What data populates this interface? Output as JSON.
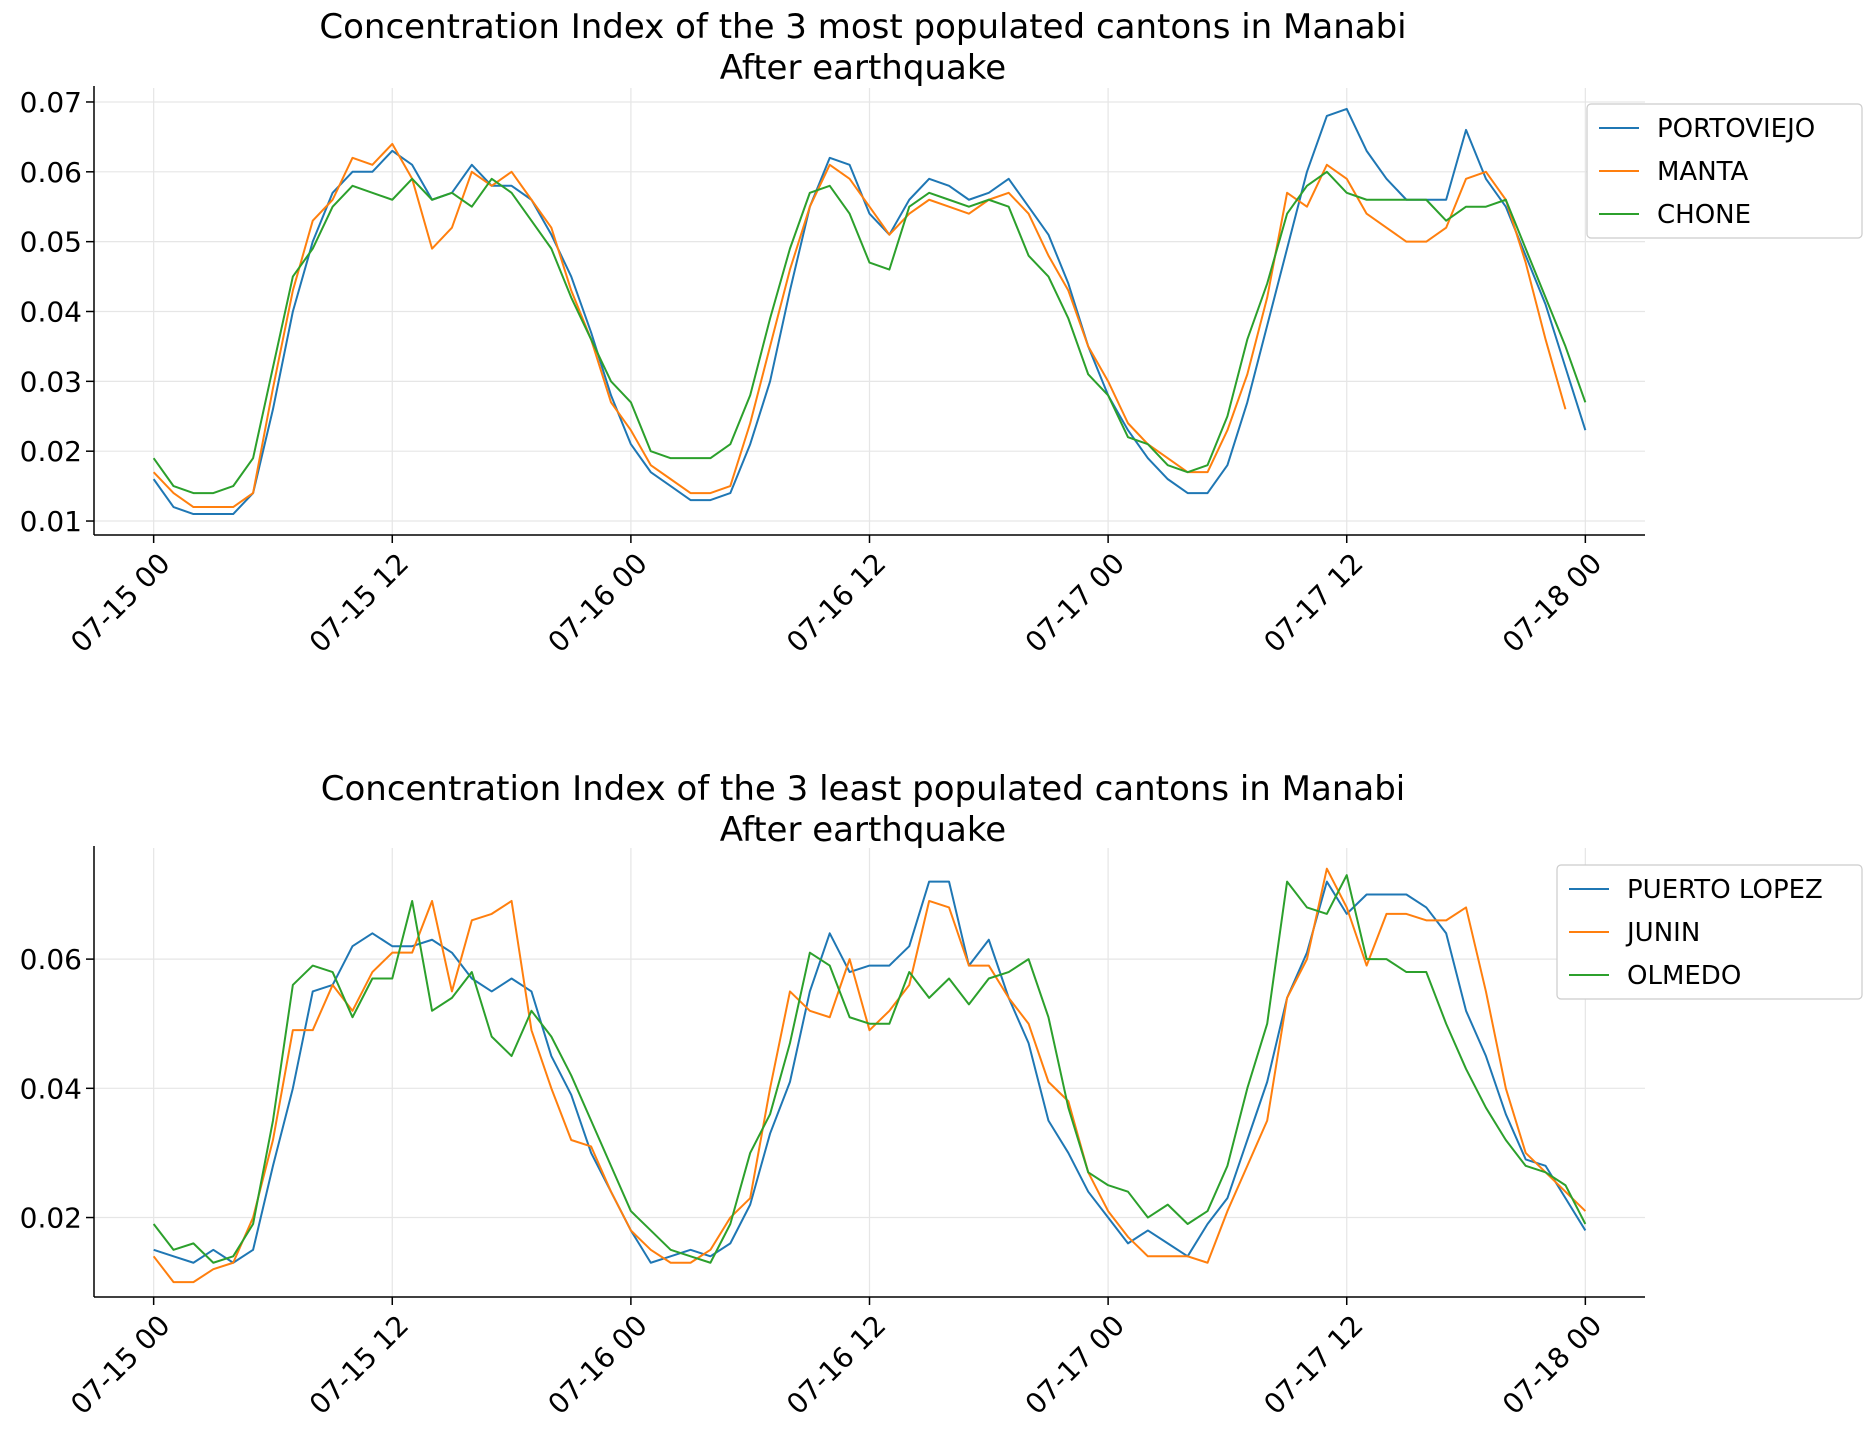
{
  "chart_data": [
    {
      "type": "line",
      "title": "Concentration Index of the 3 most populated cantons in Manabi",
      "subtitle": "After earthquake",
      "xlabel": "",
      "ylabel": "",
      "x_start": "07-15 00:00",
      "x_step_hours": 1,
      "xlim": [
        "07-14 21:00",
        "07-18 03:00"
      ],
      "xticks": [
        "07-15 00",
        "07-15 12",
        "07-16 00",
        "07-16 12",
        "07-17 00",
        "07-17 12",
        "07-18 00"
      ],
      "ylim": [
        0.008,
        0.072
      ],
      "yticks": [
        "0.01",
        "0.02",
        "0.03",
        "0.04",
        "0.05",
        "0.06",
        "0.07"
      ],
      "grid": true,
      "legend_position": "top-right",
      "series": [
        {
          "name": "PORTOVIEJO",
          "color": "#1f77b4",
          "values": [
            0.016,
            0.012,
            0.011,
            0.011,
            0.011,
            0.014,
            0.026,
            0.04,
            0.05,
            0.057,
            0.06,
            0.06,
            0.063,
            0.061,
            0.056,
            0.057,
            0.061,
            0.058,
            0.058,
            0.056,
            0.051,
            0.045,
            0.037,
            0.028,
            0.021,
            0.017,
            0.015,
            0.013,
            0.013,
            0.014,
            0.021,
            0.03,
            0.043,
            0.055,
            0.062,
            0.061,
            0.054,
            0.051,
            0.056,
            0.059,
            0.058,
            0.056,
            0.057,
            0.059,
            0.055,
            0.051,
            0.044,
            0.035,
            0.028,
            0.023,
            0.019,
            0.016,
            0.014,
            0.014,
            0.018,
            0.027,
            0.038,
            0.049,
            0.06,
            0.068,
            0.069,
            0.063,
            0.059,
            0.056,
            0.056,
            0.056,
            0.066,
            0.059,
            0.055,
            0.048,
            0.041,
            0.032,
            0.023
          ]
        },
        {
          "name": "MANTA",
          "color": "#ff7f0e",
          "values": [
            0.017,
            0.014,
            0.012,
            0.012,
            0.012,
            0.014,
            0.029,
            0.043,
            0.053,
            0.056,
            0.062,
            0.061,
            0.064,
            0.059,
            0.049,
            0.052,
            0.06,
            0.058,
            0.06,
            0.056,
            0.052,
            0.043,
            0.036,
            0.027,
            0.023,
            0.018,
            0.016,
            0.014,
            0.014,
            0.015,
            0.024,
            0.035,
            0.046,
            0.055,
            0.061,
            0.059,
            0.055,
            0.051,
            0.054,
            0.056,
            0.055,
            0.054,
            0.056,
            0.057,
            0.054,
            0.048,
            0.043,
            0.035,
            0.03,
            0.024,
            0.021,
            0.019,
            0.017,
            0.017,
            0.023,
            0.031,
            0.042,
            0.057,
            0.055,
            0.061,
            0.059,
            0.054,
            0.052,
            0.05,
            0.05,
            0.052,
            0.059,
            0.06,
            0.056,
            0.047,
            0.036,
            0.026
          ]
        },
        {
          "name": "CHONE",
          "color": "#2ca02c",
          "values": [
            0.019,
            0.015,
            0.014,
            0.014,
            0.015,
            0.019,
            0.032,
            0.045,
            0.049,
            0.055,
            0.058,
            0.057,
            0.056,
            0.059,
            0.056,
            0.057,
            0.055,
            0.059,
            0.057,
            0.053,
            0.049,
            0.042,
            0.036,
            0.03,
            0.027,
            0.02,
            0.019,
            0.019,
            0.019,
            0.021,
            0.028,
            0.039,
            0.049,
            0.057,
            0.058,
            0.054,
            0.047,
            0.046,
            0.055,
            0.057,
            0.056,
            0.055,
            0.056,
            0.055,
            0.048,
            0.045,
            0.039,
            0.031,
            0.028,
            0.022,
            0.021,
            0.018,
            0.017,
            0.018,
            0.025,
            0.036,
            0.044,
            0.054,
            0.058,
            0.06,
            0.057,
            0.056,
            0.056,
            0.056,
            0.056,
            0.053,
            0.055,
            0.055,
            0.056,
            0.049,
            0.042,
            0.035,
            0.027
          ]
        }
      ]
    },
    {
      "type": "line",
      "title": "Concentration Index of the 3 least populated cantons in Manabi",
      "subtitle": "After earthquake",
      "xlabel": "",
      "ylabel": "",
      "x_start": "07-15 00:00",
      "x_step_hours": 1,
      "xlim": [
        "07-14 21:00",
        "07-18 03:00"
      ],
      "xticks": [
        "07-15 00",
        "07-15 12",
        "07-16 00",
        "07-16 12",
        "07-17 00",
        "07-17 12",
        "07-18 00"
      ],
      "ylim": [
        0.0077,
        0.0772
      ],
      "yticks": [
        "0.02",
        "0.04",
        "0.06"
      ],
      "grid": true,
      "legend_position": "top-right",
      "series": [
        {
          "name": "PUERTO LOPEZ",
          "color": "#1f77b4",
          "values": [
            0.015,
            0.014,
            0.013,
            0.015,
            0.013,
            0.015,
            0.028,
            0.04,
            0.055,
            0.056,
            0.062,
            0.064,
            0.062,
            0.062,
            0.063,
            0.061,
            0.057,
            0.055,
            0.057,
            0.055,
            0.045,
            0.039,
            0.03,
            0.024,
            0.018,
            0.013,
            0.014,
            0.015,
            0.014,
            0.016,
            0.022,
            0.033,
            0.041,
            0.055,
            0.064,
            0.058,
            0.059,
            0.059,
            0.062,
            0.072,
            0.072,
            0.059,
            0.063,
            0.054,
            0.047,
            0.035,
            0.03,
            0.024,
            0.02,
            0.016,
            0.018,
            0.016,
            0.014,
            0.019,
            0.023,
            0.032,
            0.041,
            0.054,
            0.061,
            0.072,
            0.067,
            0.07,
            0.07,
            0.07,
            0.068,
            0.064,
            0.052,
            0.045,
            0.036,
            0.029,
            0.028,
            0.023,
            0.018
          ]
        },
        {
          "name": "JUNIN",
          "color": "#ff7f0e",
          "values": [
            0.014,
            0.01,
            0.01,
            0.012,
            0.013,
            0.02,
            0.032,
            0.049,
            0.049,
            0.056,
            0.052,
            0.058,
            0.061,
            0.061,
            0.069,
            0.055,
            0.066,
            0.067,
            0.069,
            0.049,
            0.04,
            0.032,
            0.031,
            0.024,
            0.018,
            0.015,
            0.013,
            0.013,
            0.015,
            0.02,
            0.023,
            0.04,
            0.055,
            0.052,
            0.051,
            0.06,
            0.049,
            0.052,
            0.056,
            0.069,
            0.068,
            0.059,
            0.059,
            0.054,
            0.05,
            0.041,
            0.038,
            0.027,
            0.021,
            0.017,
            0.014,
            0.014,
            0.014,
            0.013,
            0.021,
            0.028,
            0.035,
            0.054,
            0.06,
            0.074,
            0.068,
            0.059,
            0.067,
            0.067,
            0.066,
            0.066,
            0.068,
            0.055,
            0.04,
            0.03,
            0.027,
            0.024,
            0.021
          ]
        },
        {
          "name": "OLMEDO",
          "color": "#2ca02c",
          "values": [
            0.019,
            0.015,
            0.016,
            0.013,
            0.014,
            0.019,
            0.035,
            0.056,
            0.059,
            0.058,
            0.051,
            0.057,
            0.057,
            0.069,
            0.052,
            0.054,
            0.058,
            0.048,
            0.045,
            0.052,
            0.048,
            0.042,
            0.035,
            0.028,
            0.021,
            0.018,
            0.015,
            0.014,
            0.013,
            0.019,
            0.03,
            0.036,
            0.047,
            0.061,
            0.059,
            0.051,
            0.05,
            0.05,
            0.058,
            0.054,
            0.057,
            0.053,
            0.057,
            0.058,
            0.06,
            0.051,
            0.037,
            0.027,
            0.025,
            0.024,
            0.02,
            0.022,
            0.019,
            0.021,
            0.028,
            0.04,
            0.05,
            0.072,
            0.068,
            0.067,
            0.073,
            0.06,
            0.06,
            0.058,
            0.058,
            0.05,
            0.043,
            0.037,
            0.032,
            0.028,
            0.027,
            0.025,
            0.019
          ]
        }
      ]
    }
  ]
}
